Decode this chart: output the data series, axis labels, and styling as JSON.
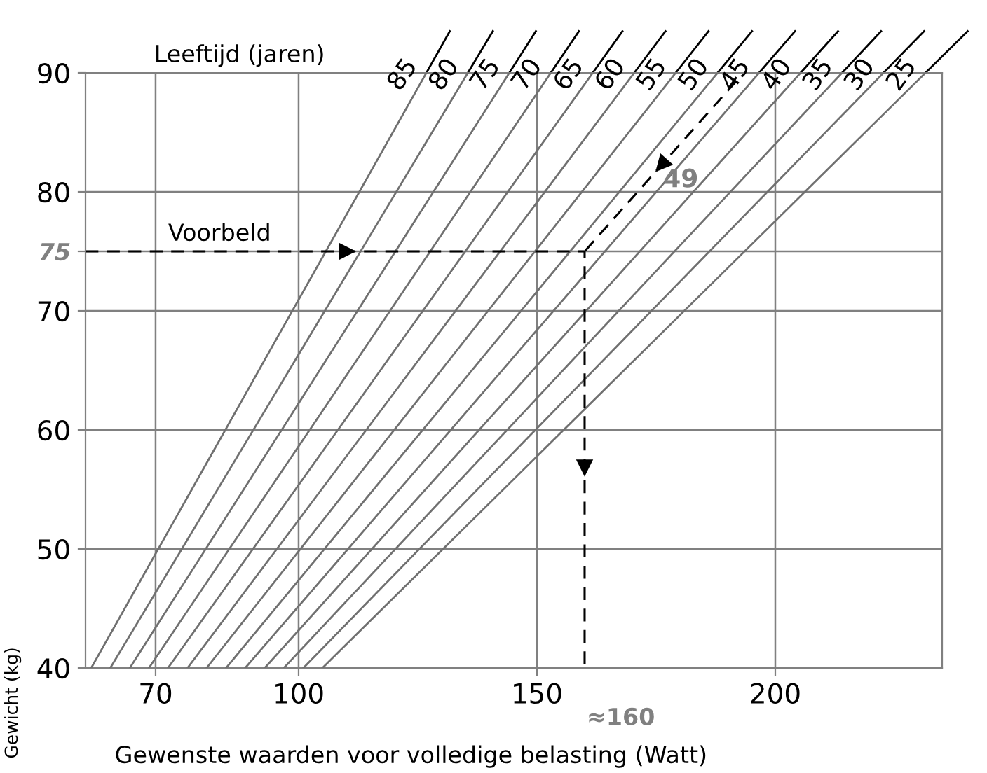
{
  "chart_data": {
    "type": "line",
    "xlabel": "Gewenste waarden voor volledige belasting (Watt)",
    "ylabel": "Gewicht (kg)",
    "xlim": [
      55.3,
      235
    ],
    "ylim": [
      40,
      90
    ],
    "xticks": [
      70,
      100,
      150,
      200
    ],
    "yticks": [
      40,
      50,
      60,
      70,
      {
        "value": 75,
        "label": "75"
      },
      80,
      90
    ],
    "grid": true,
    "legend": false,
    "marker": "none",
    "line_style": "solid",
    "series": [
      {
        "name": "85",
        "color": "#707070",
        "x": [
          56.5,
          126.8
        ],
        "values": [
          40,
          90
        ]
      },
      {
        "name": "80",
        "color": "#707070",
        "x": [
          60.5,
          135.5
        ],
        "values": [
          40,
          90
        ]
      },
      {
        "name": "75",
        "color": "#707070",
        "x": [
          64.6,
          144.2
        ],
        "values": [
          40,
          90
        ]
      },
      {
        "name": "70",
        "color": "#707070",
        "x": [
          68.6,
          152.9
        ],
        "values": [
          40,
          90
        ]
      },
      {
        "name": "65",
        "color": "#707070",
        "x": [
          72.6,
          161.7
        ],
        "values": [
          40,
          90
        ]
      },
      {
        "name": "60",
        "color": "#707070",
        "x": [
          76.7,
          170.4
        ],
        "values": [
          40,
          90
        ]
      },
      {
        "name": "55",
        "color": "#707070",
        "x": [
          80.7,
          179.1
        ],
        "values": [
          40,
          90
        ]
      },
      {
        "name": "50",
        "color": "#707070",
        "x": [
          84.8,
          187.9
        ],
        "values": [
          40,
          90
        ]
      },
      {
        "name": "45",
        "color": "#707070",
        "x": [
          88.8,
          196.6
        ],
        "values": [
          40,
          90
        ]
      },
      {
        "name": "40",
        "color": "#707070",
        "x": [
          92.9,
          205.3
        ],
        "values": [
          40,
          90
        ]
      },
      {
        "name": "35",
        "color": "#707070",
        "x": [
          96.9,
          214.0
        ],
        "values": [
          40,
          90
        ]
      },
      {
        "name": "30",
        "color": "#707070",
        "x": [
          101.0,
          222.7
        ],
        "values": [
          40,
          90
        ]
      },
      {
        "name": "25",
        "color": "#707070",
        "x": [
          105.0,
          231.5
        ],
        "values": [
          40,
          90
        ]
      },
      {
        "color": "#000000",
        "line_style": "dashed",
        "x": [
          55.3,
          160,
          160
        ],
        "values": [
          75,
          75,
          40
        ]
      },
      {
        "color": "#000000",
        "line_style": "dashed",
        "x": [
          191.8,
          160
        ],
        "values": [
          89.3,
          75
        ]
      }
    ],
    "annotations": [
      "Leeftijd (jaren)",
      {
        "text": "Voorbeld",
        "x": 71,
        "y": 75
      },
      {
        "text": "49",
        "x": 172,
        "y": 80
      },
      "≈160"
    ]
  }
}
